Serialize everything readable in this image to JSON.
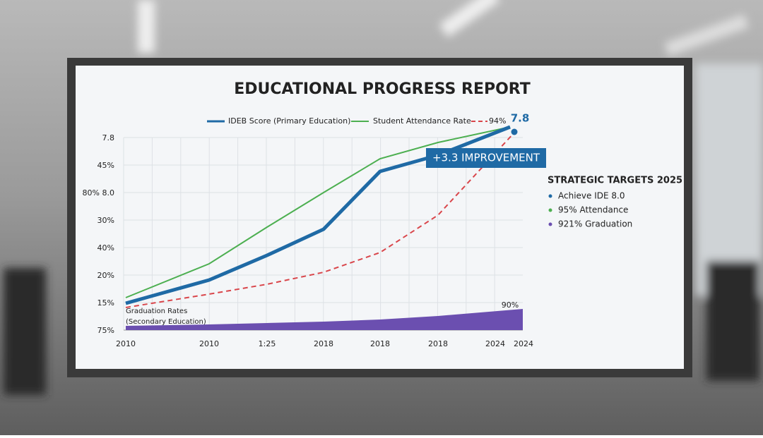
{
  "report": {
    "title": "EDUCATIONAL PROGRESS REPORT",
    "legend": [
      "IDEB Score (Primary Education)",
      "Student Attendance Rate",
      "94%"
    ],
    "peak_label": "7.8",
    "y_axis_labels": [
      "7.8",
      "45%",
      "80% 8.0",
      "30%",
      "40%",
      "20%",
      "15%",
      "75%"
    ],
    "x_axis_labels": [
      "2010",
      "2010",
      "1:25",
      "2018",
      "2018",
      "2018",
      "2024",
      "2024"
    ],
    "area_label": [
      "Graduation Rates",
      "(Secondary Education)"
    ],
    "area_end_label": "90%",
    "annotation": "+3.3 IMPROVEMENT",
    "targets": {
      "title": "STRATEGIC TARGETS 2025",
      "items": [
        "Achieve IDE 8.0",
        "95% Attendance",
        "921% Graduation"
      ]
    }
  }
}
